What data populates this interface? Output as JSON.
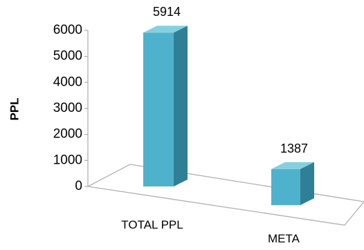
{
  "chart_data": {
    "type": "bar",
    "title": "",
    "xlabel": "",
    "ylabel": "PPL",
    "categories": [
      "TOTAL PPL",
      "META"
    ],
    "values": [
      5914,
      1387
    ],
    "ylim": [
      0,
      6000
    ],
    "yticks": [
      "0",
      "1000",
      "2000",
      "3000",
      "4000",
      "5000",
      "6000"
    ],
    "data_labels": [
      "5914",
      "1387"
    ],
    "grid": false,
    "legend": "none",
    "colors": {
      "bar_front": "#4eb2cc",
      "bar_side": "#2f7f96",
      "bar_top": "#86cfe0",
      "axis": "#b0b0b0"
    }
  }
}
